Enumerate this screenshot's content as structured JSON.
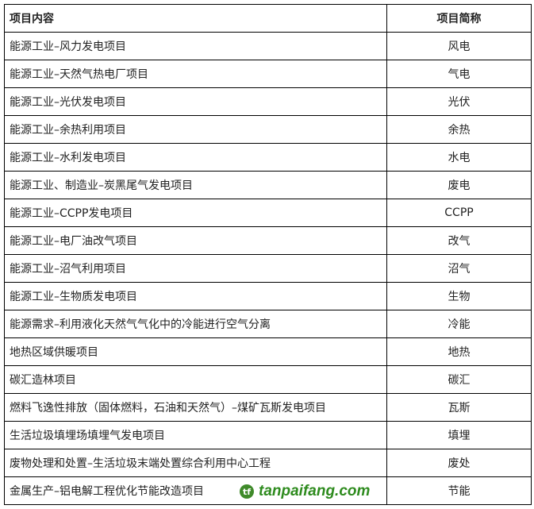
{
  "table": {
    "headers": [
      "项目内容",
      "项目简称"
    ],
    "rows": [
      [
        "能源工业–风力发电项目",
        "风电"
      ],
      [
        "能源工业–天然气热电厂项目",
        "气电"
      ],
      [
        "能源工业–光伏发电项目",
        "光伏"
      ],
      [
        "能源工业–余热利用项目",
        "余热"
      ],
      [
        "能源工业–水利发电项目",
        "水电"
      ],
      [
        "能源工业、制造业–炭黑尾气发电项目",
        "废电"
      ],
      [
        "能源工业–CCPP发电项目",
        "CCPP"
      ],
      [
        "能源工业–电厂油改气项目",
        "改气"
      ],
      [
        "能源工业–沼气利用项目",
        "沼气"
      ],
      [
        "能源工业–生物质发电项目",
        "生物"
      ],
      [
        "能源需求–利用液化天然气气化中的冷能进行空气分离",
        "冷能"
      ],
      [
        "地热区域供暖项目",
        "地热"
      ],
      [
        "碳汇造林项目",
        "碳汇"
      ],
      [
        "燃料飞逸性排放（固体燃料，石油和天然气）–煤矿瓦斯发电项目",
        "瓦斯"
      ],
      [
        "生活垃圾填埋场填埋气发电项目",
        "填埋"
      ],
      [
        "废物处理和处置–生活垃圾末端处置综合利用中心工程",
        "废处"
      ],
      [
        "金属生产–铝电解工程优化节能改造项目",
        "节能"
      ]
    ]
  },
  "watermark": {
    "text": "tanpaifang.com",
    "logo_color": "#3f8a2a"
  }
}
